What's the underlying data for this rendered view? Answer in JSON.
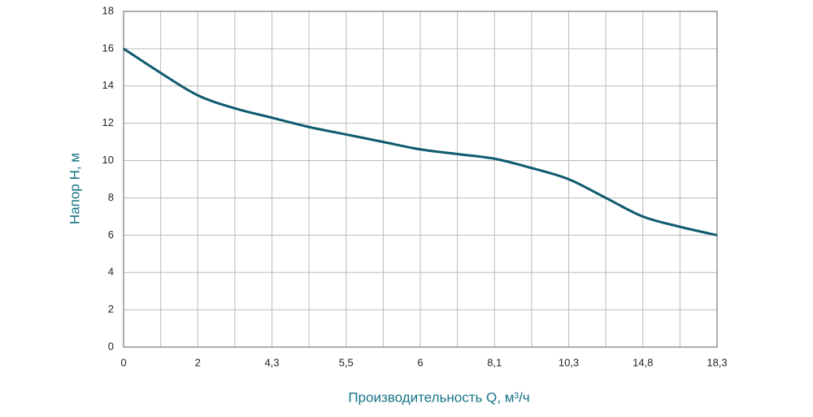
{
  "chart_data": {
    "type": "line",
    "x_label": "Производительность Q, м³/ч",
    "y_label": "Напор Н, м",
    "categories": [
      "0",
      null,
      "2",
      null,
      "4,3",
      null,
      "5,5",
      null,
      "6",
      null,
      "8,1",
      null,
      "10,3",
      null,
      "14,8",
      null,
      "18,3"
    ],
    "values": [
      16,
      14.7,
      13.5,
      12.8,
      12.3,
      11.8,
      11.4,
      11.0,
      10.6,
      10.35,
      10.1,
      9.6,
      9.0,
      8.0,
      7.0,
      6.45,
      6.0
    ],
    "color": "#0e5a6e",
    "ylim": [
      0,
      18
    ],
    "yticks": [
      0,
      2,
      4,
      6,
      8,
      10,
      12,
      14,
      16,
      18
    ],
    "grid": true
  }
}
